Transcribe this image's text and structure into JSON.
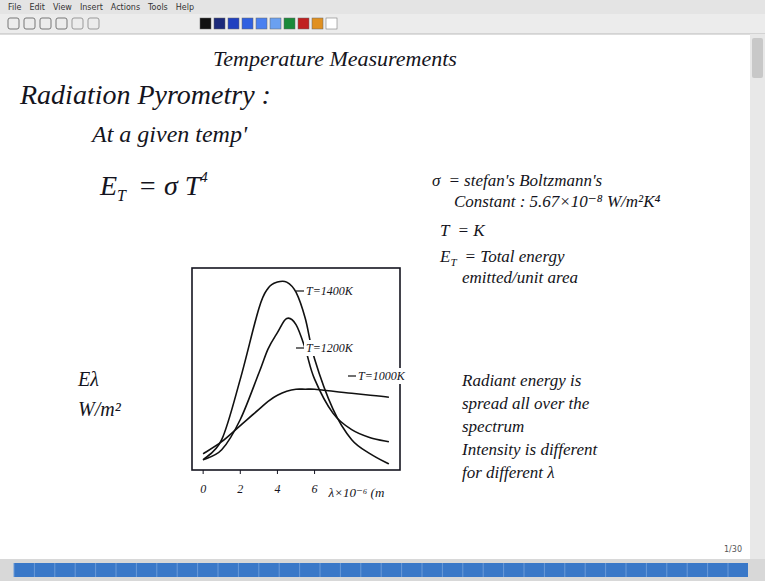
{
  "menu": [
    "File",
    "Edit",
    "View",
    "Insert",
    "Actions",
    "Tools",
    "Help"
  ],
  "title": "Temperature Measurements",
  "heading": "Radiation Pyrometry :",
  "subheading": "At a given temp'",
  "equation": {
    "lhs": "E",
    "lhs_sub": "T",
    "rhs": "= σ T",
    "rhs_sup": "4"
  },
  "definitions": [
    {
      "symbol": "σ",
      "lines": [
        "= stefan's Boltzmann's",
        "Constant : 5.67×10⁻⁸ W/m²K⁴"
      ]
    },
    {
      "symbol": "T",
      "lines": [
        "= K"
      ]
    },
    {
      "symbol": "E",
      "sub": "T",
      "lines": [
        "= Total energy",
        "emitted/unit area"
      ]
    }
  ],
  "remarks": [
    "Radiant energy is",
    "spread all over the",
    "spectrum",
    "Intensity is different",
    "for different λ"
  ],
  "page": "1/30",
  "chart_data": {
    "type": "line",
    "xlabel": "λ×10⁻⁶ (m",
    "ylabel": "Eλ W/m²",
    "x": [
      0,
      1,
      2,
      3,
      3.5,
      4,
      4.5,
      5,
      5.5,
      6,
      7,
      8,
      9,
      10
    ],
    "series": [
      {
        "name": "T=1400K",
        "color": "#111111",
        "values": [
          5,
          15,
          45,
          80,
          90,
          93,
          93,
          88,
          75,
          55,
          30,
          15,
          8,
          3
        ]
      },
      {
        "name": "T=1200K",
        "color": "#111111",
        "values": [
          5,
          10,
          25,
          48,
          60,
          68,
          75,
          72,
          60,
          45,
          28,
          20,
          16,
          14
        ]
      },
      {
        "name": "T=1000K",
        "color": "#111111",
        "values": [
          8,
          14,
          22,
          30,
          34,
          37,
          39,
          40,
          40,
          40,
          39,
          38,
          37,
          36
        ]
      }
    ],
    "xlim": [
      -0.6,
      10.6
    ],
    "xticks": [
      0,
      2,
      4,
      6
    ],
    "ylim": [
      0,
      100
    ],
    "yticks": [],
    "tick_labels": "x",
    "grid": false
  }
}
